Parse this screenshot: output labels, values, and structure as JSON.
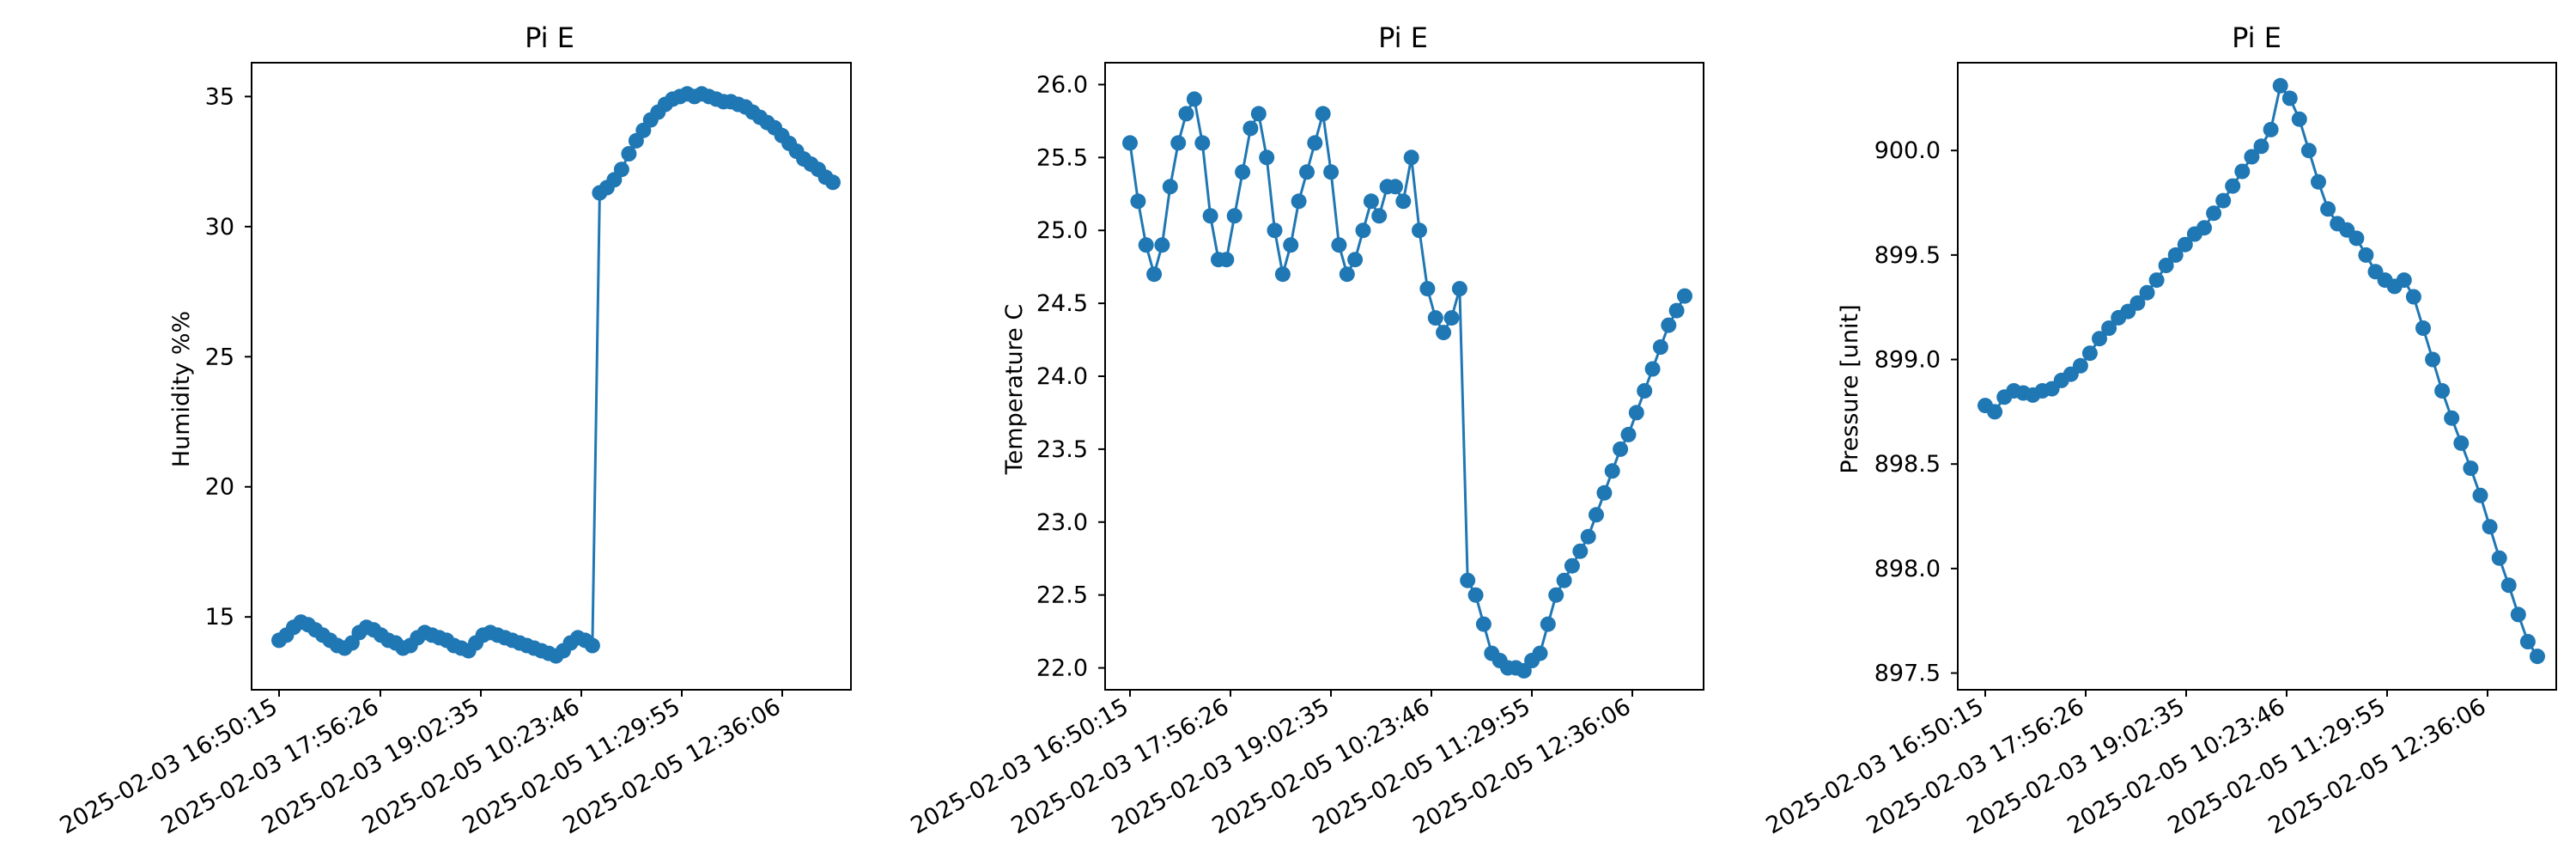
{
  "figure": {
    "background": "#ffffff",
    "series_color": "#1f77b4"
  },
  "chart_data": [
    {
      "type": "line",
      "title": "Pi E",
      "xlabel": "",
      "ylabel": "Humidity %%",
      "ylim": [
        12.2,
        36.3
      ],
      "yticks": [
        15,
        20,
        25,
        30,
        35
      ],
      "xtick_labels": [
        "2025-02-03 16:50:15",
        "2025-02-03 17:56:26",
        "2025-02-03 19:02:35",
        "2025-02-05 10:23:46",
        "2025-02-05 11:29:55",
        "2025-02-05 12:36:06"
      ],
      "marker": "circle",
      "series": [
        {
          "values": [
            14.1,
            14.3,
            14.6,
            14.8,
            14.7,
            14.5,
            14.3,
            14.1,
            13.9,
            13.8,
            14.0,
            14.4,
            14.6,
            14.5,
            14.3,
            14.1,
            14.0,
            13.8,
            13.9,
            14.2,
            14.4,
            14.3,
            14.2,
            14.1,
            13.9,
            13.8,
            13.7,
            14.0,
            14.3,
            14.4,
            14.3,
            14.2,
            14.1,
            14.0,
            13.9,
            13.8,
            13.7,
            13.6,
            13.5,
            13.7,
            14.0,
            14.2,
            14.1,
            13.9,
            31.3,
            31.5,
            31.8,
            32.2,
            32.8,
            33.3,
            33.7,
            34.1,
            34.4,
            34.7,
            34.9,
            35.0,
            35.1,
            35.0,
            35.1,
            35.0,
            34.9,
            34.8,
            34.8,
            34.7,
            34.6,
            34.4,
            34.2,
            34.0,
            33.8,
            33.5,
            33.2,
            32.9,
            32.6,
            32.4,
            32.2,
            31.9,
            31.7
          ]
        }
      ]
    },
    {
      "type": "line",
      "title": "Pi E",
      "xlabel": "",
      "ylabel": "Temperature C",
      "ylim": [
        21.85,
        26.15
      ],
      "yticks": [
        22.0,
        22.5,
        23.0,
        23.5,
        24.0,
        24.5,
        25.0,
        25.5,
        26.0
      ],
      "xtick_labels": [
        "2025-02-03 16:50:15",
        "2025-02-03 17:56:26",
        "2025-02-03 19:02:35",
        "2025-02-05 10:23:46",
        "2025-02-05 11:29:55",
        "2025-02-05 12:36:06"
      ],
      "marker": "circle",
      "series": [
        {
          "values": [
            25.6,
            25.2,
            24.9,
            24.7,
            24.9,
            25.3,
            25.6,
            25.8,
            25.9,
            25.6,
            25.1,
            24.8,
            24.8,
            25.1,
            25.4,
            25.7,
            25.8,
            25.5,
            25.0,
            24.7,
            24.9,
            25.2,
            25.4,
            25.6,
            25.8,
            25.4,
            24.9,
            24.7,
            24.8,
            25.0,
            25.2,
            25.1,
            25.3,
            25.3,
            25.2,
            25.5,
            25.0,
            24.6,
            24.4,
            24.3,
            24.4,
            24.6,
            22.6,
            22.5,
            22.3,
            22.1,
            22.05,
            22.0,
            22.0,
            21.98,
            22.05,
            22.1,
            22.3,
            22.5,
            22.6,
            22.7,
            22.8,
            22.9,
            23.05,
            23.2,
            23.35,
            23.5,
            23.6,
            23.75,
            23.9,
            24.05,
            24.2,
            24.35,
            24.45,
            24.55
          ]
        }
      ]
    },
    {
      "type": "line",
      "title": "Pi E",
      "xlabel": "",
      "ylabel": "Pressure [unit]",
      "ylim": [
        897.42,
        900.42
      ],
      "yticks": [
        897.5,
        898.0,
        898.5,
        899.0,
        899.5,
        900.0
      ],
      "xtick_labels": [
        "2025-02-03 16:50:15",
        "2025-02-03 17:56:26",
        "2025-02-03 19:02:35",
        "2025-02-05 10:23:46",
        "2025-02-05 11:29:55",
        "2025-02-05 12:36:06"
      ],
      "marker": "circle",
      "series": [
        {
          "values": [
            898.78,
            898.75,
            898.82,
            898.85,
            898.84,
            898.83,
            898.85,
            898.86,
            898.9,
            898.93,
            898.97,
            899.03,
            899.1,
            899.15,
            899.2,
            899.23,
            899.27,
            899.32,
            899.38,
            899.45,
            899.5,
            899.55,
            899.6,
            899.63,
            899.7,
            899.76,
            899.83,
            899.9,
            899.97,
            900.02,
            900.1,
            900.31,
            900.25,
            900.15,
            900.0,
            899.85,
            899.72,
            899.65,
            899.62,
            899.58,
            899.5,
            899.42,
            899.38,
            899.35,
            899.38,
            899.3,
            899.15,
            899.0,
            898.85,
            898.72,
            898.6,
            898.48,
            898.35,
            898.2,
            898.05,
            897.92,
            897.78,
            897.65,
            897.58
          ]
        }
      ]
    }
  ]
}
